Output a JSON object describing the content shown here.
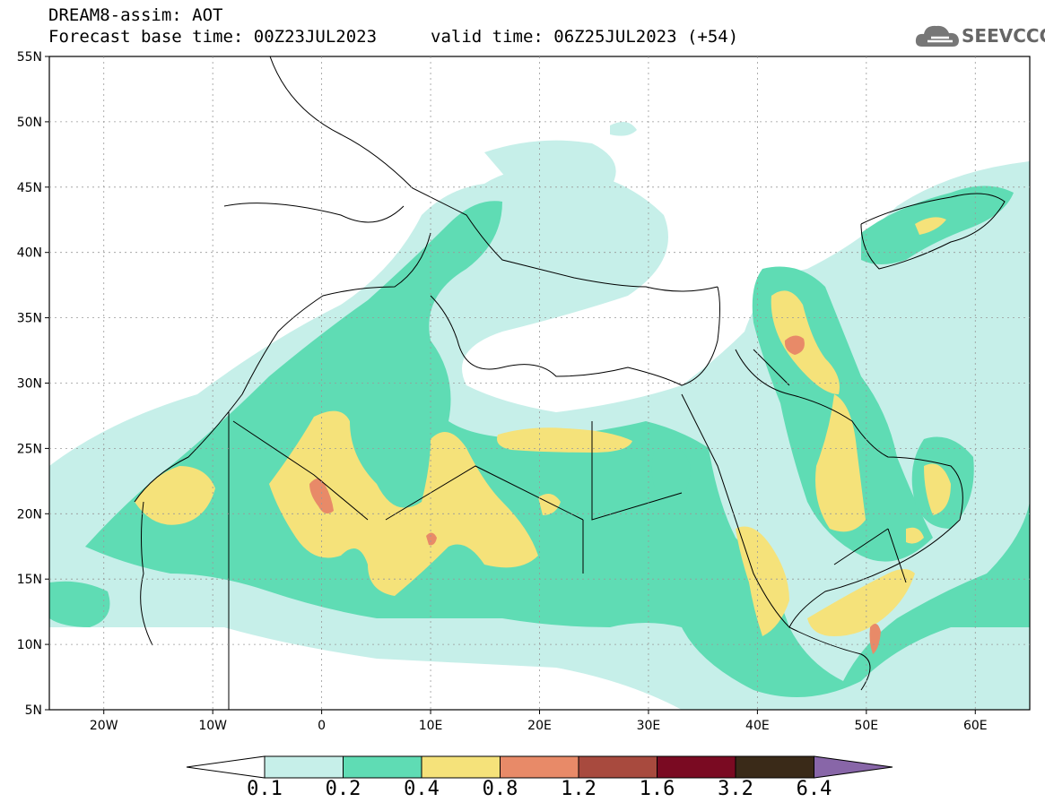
{
  "header": {
    "line1": "DREAM8-assim: AOT",
    "line2": "Forecast base time: 00Z23JUL2023",
    "valid": "valid time: 06Z25JUL2023 (+54)",
    "logo_text": "SEEVCCC",
    "logo_icon": "cloud-icon"
  },
  "map": {
    "lat_labels": [
      "55N",
      "50N",
      "45N",
      "40N",
      "35N",
      "30N",
      "25N",
      "20N",
      "15N",
      "10N",
      "5N"
    ],
    "lon_labels": [
      "20W",
      "10W",
      "0",
      "10E",
      "20E",
      "30E",
      "40E",
      "50E",
      "60E"
    ],
    "lon_range": [
      -25,
      65
    ],
    "lat_range": [
      5,
      55
    ]
  },
  "legend": {
    "labels": [
      "0.1",
      "0.2",
      "0.4",
      "0.8",
      "1.2",
      "1.6",
      "3.2",
      "6.4"
    ],
    "colors": [
      "#ffffff",
      "#c6efe9",
      "#5fdcb4",
      "#f5e27a",
      "#e88a68",
      "#a84a3e",
      "#7a0a22",
      "#3a2a18",
      "#8866a8"
    ]
  }
}
